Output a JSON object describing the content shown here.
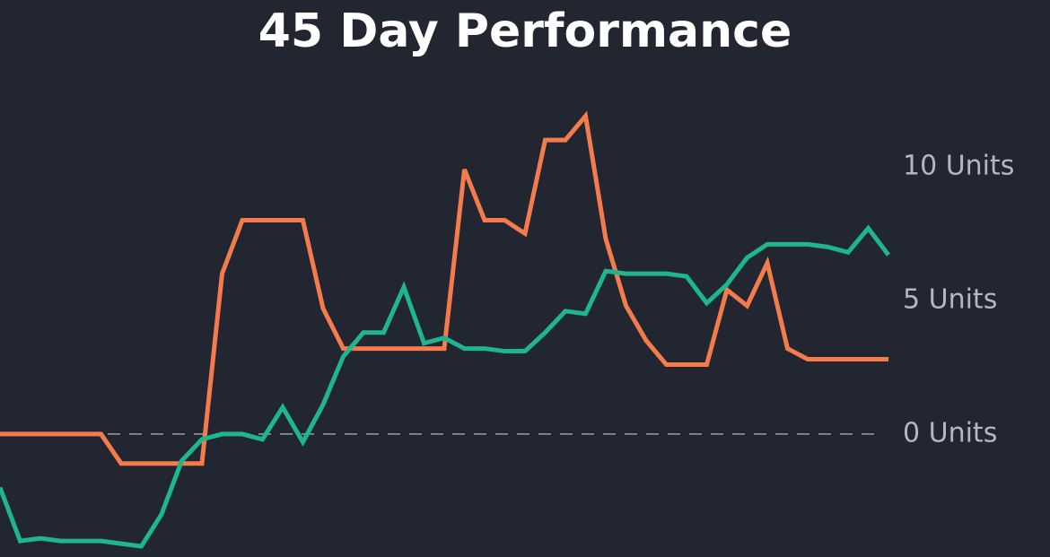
{
  "chart_data": {
    "type": "line",
    "title": "45 Day Performance",
    "ylim": [
      -4.6,
      12.7
    ],
    "yticks": [
      {
        "value": 0,
        "label": "0 Units"
      },
      {
        "value": 5,
        "label": "5 Units"
      },
      {
        "value": 10,
        "label": "10 Units"
      }
    ],
    "zero_line": true,
    "series": [
      {
        "color": "#f47c4c",
        "values": [
          0,
          0,
          0,
          0,
          0,
          0,
          -1.1,
          -1.1,
          -1.1,
          -1.1,
          -1.1,
          6.0,
          8.0,
          8.0,
          8.0,
          8.0,
          4.7,
          3.2,
          3.2,
          3.2,
          3.2,
          3.2,
          3.2,
          9.9,
          8.0,
          8.0,
          7.5,
          11.0,
          11.0,
          11.9,
          7.3,
          4.8,
          3.5,
          2.6,
          2.6,
          2.6,
          5.4,
          4.8,
          6.4,
          3.2,
          2.8,
          2.8,
          2.8,
          2.8,
          2.8
        ]
      },
      {
        "color": "#1fb58f",
        "values": [
          -2.0,
          -4.0,
          -3.9,
          -4.0,
          -4.0,
          -4.0,
          -4.1,
          -4.2,
          -3.0,
          -1.0,
          -0.2,
          0,
          0,
          -0.2,
          1.0,
          -0.3,
          1.1,
          2.9,
          3.8,
          3.8,
          5.5,
          3.4,
          3.6,
          3.2,
          3.2,
          3.1,
          3.1,
          3.8,
          4.6,
          4.5,
          6.1,
          6.0,
          6.0,
          6.0,
          5.9,
          4.9,
          5.6,
          6.6,
          7.1,
          7.1,
          7.1,
          7.0,
          6.8,
          7.7,
          6.7
        ]
      }
    ]
  }
}
